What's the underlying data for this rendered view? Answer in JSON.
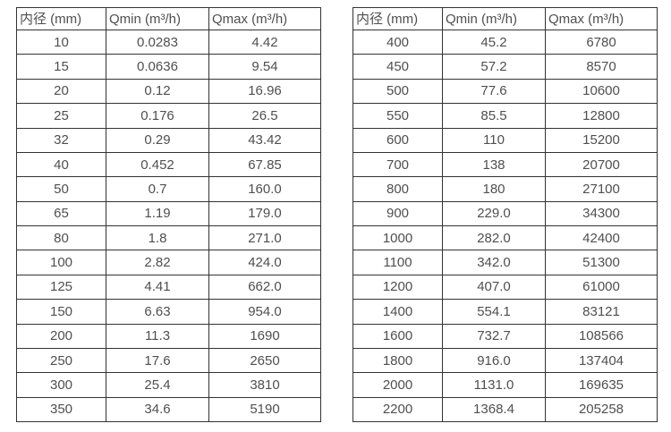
{
  "colors": {
    "background": "#ffffff",
    "border": "#333333",
    "text": "#4f4f4f"
  },
  "tables": [
    {
      "headers": [
        "内径 (mm)",
        "Qmin (m³/h)",
        "Qmax (m³/h)"
      ],
      "rows": [
        [
          "10",
          "0.0283",
          "4.42"
        ],
        [
          "15",
          "0.0636",
          "9.54"
        ],
        [
          "20",
          "0.12",
          "16.96"
        ],
        [
          "25",
          "0.176",
          "26.5"
        ],
        [
          "32",
          "0.29",
          "43.42"
        ],
        [
          "40",
          "0.452",
          "67.85"
        ],
        [
          "50",
          "0.7",
          "160.0"
        ],
        [
          "65",
          "1.19",
          "179.0"
        ],
        [
          "80",
          "1.8",
          "271.0"
        ],
        [
          "100",
          "2.82",
          "424.0"
        ],
        [
          "125",
          "4.41",
          "662.0"
        ],
        [
          "150",
          "6.63",
          "954.0"
        ],
        [
          "200",
          "11.3",
          "1690"
        ],
        [
          "250",
          "17.6",
          "2650"
        ],
        [
          "300",
          "25.4",
          "3810"
        ],
        [
          "350",
          "34.6",
          "5190"
        ]
      ]
    },
    {
      "headers": [
        "内径 (mm)",
        "Qmin (m³/h)",
        "Qmax (m³/h)"
      ],
      "rows": [
        [
          "400",
          "45.2",
          "6780"
        ],
        [
          "450",
          "57.2",
          "8570"
        ],
        [
          "500",
          "77.6",
          "10600"
        ],
        [
          "550",
          "85.5",
          "12800"
        ],
        [
          "600",
          "110",
          "15200"
        ],
        [
          "700",
          "138",
          "20700"
        ],
        [
          "800",
          "180",
          "27100"
        ],
        [
          "900",
          "229.0",
          "34300"
        ],
        [
          "1000",
          "282.0",
          "42400"
        ],
        [
          "1100",
          "342.0",
          "51300"
        ],
        [
          "1200",
          "407.0",
          "61000"
        ],
        [
          "1400",
          "554.1",
          "83121"
        ],
        [
          "1600",
          "732.7",
          "108566"
        ],
        [
          "1800",
          "916.0",
          "137404"
        ],
        [
          "2000",
          "1131.0",
          "169635"
        ],
        [
          "2200",
          "1368.4",
          "205258"
        ]
      ]
    }
  ]
}
